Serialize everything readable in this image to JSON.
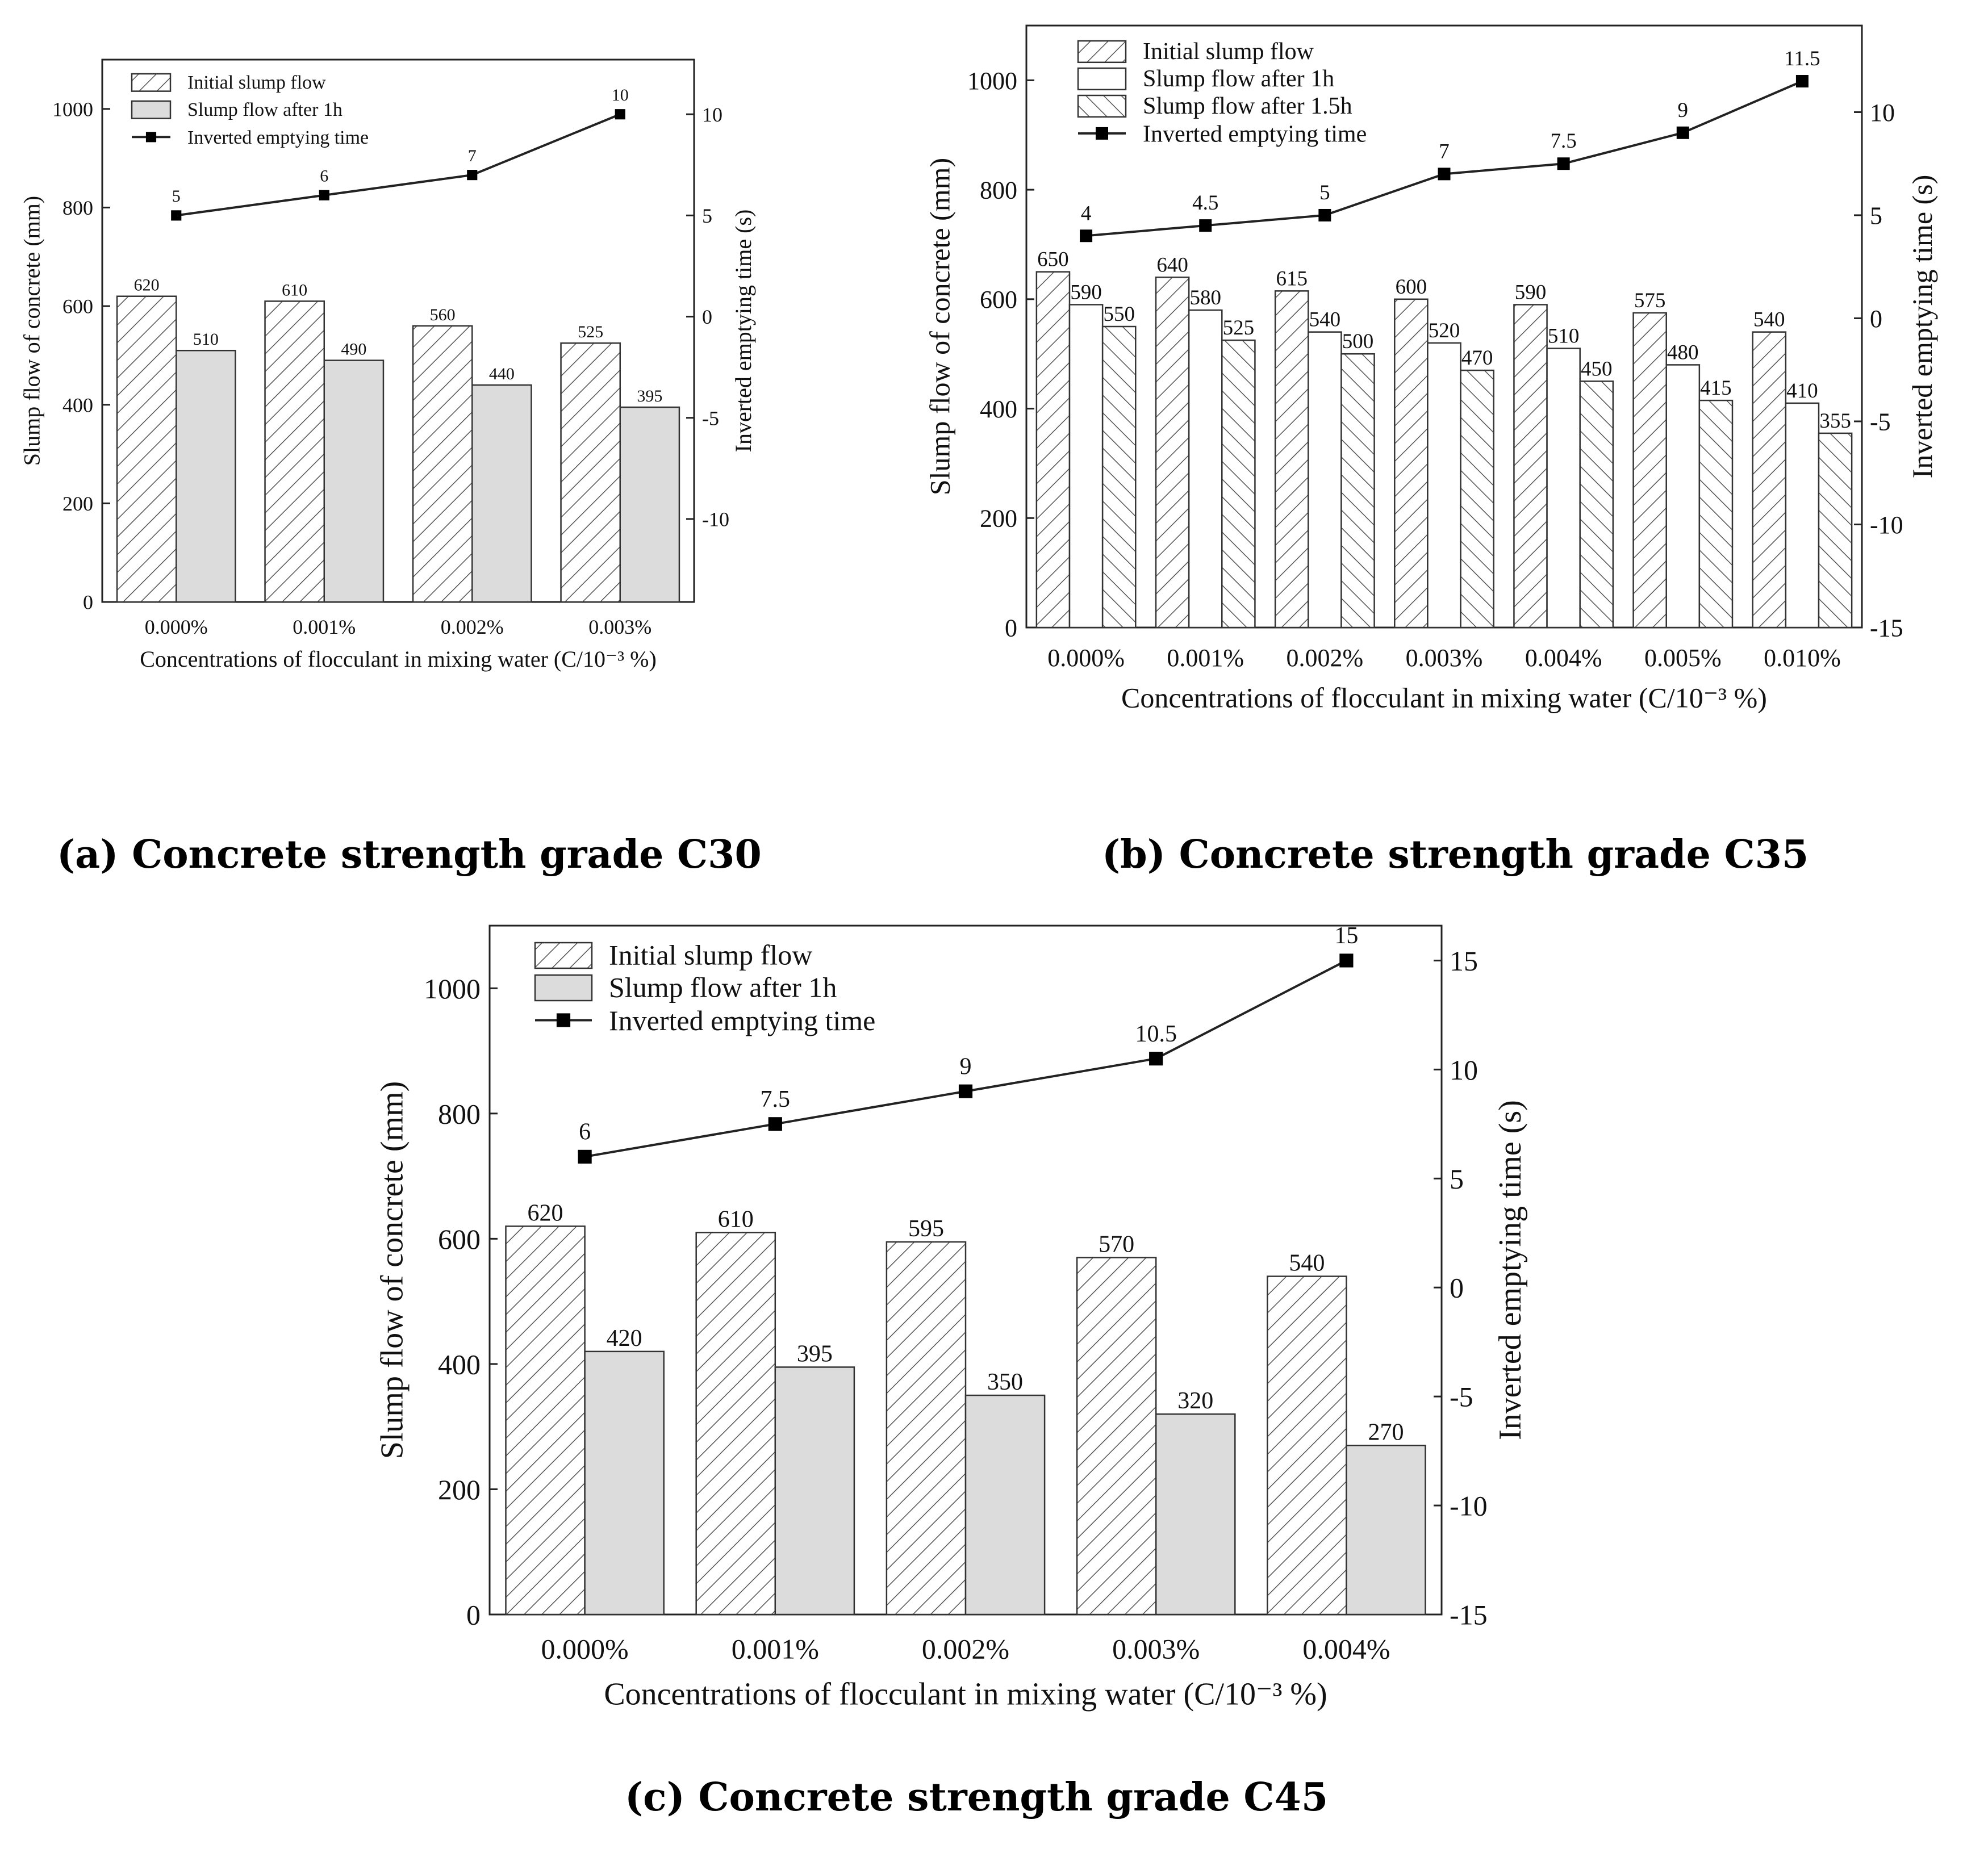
{
  "colors": {
    "axis": "#222222",
    "bar_stroke": "#333333",
    "hatch": "#555555",
    "gray_fill": "#dcdcdc",
    "white_fill": "#ffffff",
    "line": "#222222"
  },
  "chart_data": [
    {
      "id": "a",
      "type": "bar",
      "caption": "(a) Concrete strength grade C30",
      "categories": [
        "0.000%",
        "0.001%",
        "0.002%",
        "0.003%"
      ],
      "xlabel": "Concentrations of flocculant in mixing water (C/10⁻³ %)",
      "ylabel": "Slump flow of concrete (mm)",
      "y2label": "Inverted emptying time (s)",
      "ylim": [
        0,
        1100
      ],
      "yticks": [
        0,
        200,
        400,
        600,
        800,
        1000
      ],
      "y2lim": [
        -14.1,
        12.7
      ],
      "y2ticks": [
        -10,
        -5,
        0,
        5,
        10
      ],
      "legend_position": "top-left",
      "series": [
        {
          "name": "Initial slump flow",
          "style": "hatch",
          "values": [
            620,
            610,
            560,
            525
          ],
          "labels": [
            "620",
            "610",
            "560",
            "525"
          ]
        },
        {
          "name": "Slump flow after 1h",
          "style": "gray",
          "values": [
            510,
            490,
            440,
            395
          ],
          "labels": [
            "510",
            "490",
            "440",
            "395"
          ]
        }
      ],
      "line": {
        "name": "Inverted emptying time",
        "axis": "right",
        "values": [
          5,
          6,
          7,
          10
        ],
        "labels": [
          "5",
          "6",
          "7",
          "10"
        ]
      }
    },
    {
      "id": "b",
      "type": "bar",
      "caption": "(b) Concrete strength grade C35",
      "categories": [
        "0.000%",
        "0.001%",
        "0.002%",
        "0.003%",
        "0.004%",
        "0.005%",
        "0.010%"
      ],
      "xlabel": "Concentrations of flocculant in mixing water (C/10⁻³ %)",
      "ylabel": "Slump flow of concrete (mm)",
      "y2label": "Inverted emptying time (s)",
      "ylim": [
        0,
        1100
      ],
      "yticks": [
        0,
        200,
        400,
        600,
        800,
        1000
      ],
      "y2lim": [
        -15,
        14.2
      ],
      "y2ticks": [
        -15,
        -10,
        -5,
        0,
        5,
        10
      ],
      "legend_position": "top-left",
      "series": [
        {
          "name": "Initial slump flow",
          "style": "hatch",
          "values": [
            650,
            640,
            615,
            600,
            590,
            575,
            540
          ],
          "labels": [
            "650",
            "640",
            "615",
            "600",
            "590",
            "575",
            "540"
          ]
        },
        {
          "name": "Slump flow after 1h",
          "style": "white",
          "values": [
            590,
            580,
            540,
            520,
            510,
            480,
            410
          ],
          "labels": [
            "590",
            "580",
            "540",
            "520",
            "510",
            "480",
            "410"
          ]
        },
        {
          "name": "Slump flow after 1.5h",
          "style": "backhatch",
          "values": [
            550,
            525,
            500,
            470,
            450,
            415,
            355
          ],
          "labels": [
            "550",
            "525",
            "500",
            "470",
            "450",
            "415",
            "355"
          ]
        }
      ],
      "line": {
        "name": "Inverted emptying time",
        "axis": "right",
        "values": [
          4,
          4.5,
          5,
          7,
          7.5,
          9,
          11.5
        ],
        "labels": [
          "4",
          "4.5",
          "5",
          "7",
          "7.5",
          "9",
          "11.5"
        ]
      }
    },
    {
      "id": "c",
      "type": "bar",
      "caption": "(c) Concrete strength grade C45",
      "categories": [
        "0.000%",
        "0.001%",
        "0.002%",
        "0.003%",
        "0.004%"
      ],
      "xlabel": "Concentrations of flocculant in mixing water (C/10⁻³ %)",
      "ylabel": "Slump flow of concrete (mm)",
      "y2label": "Inverted emptying time (s)",
      "ylim": [
        0,
        1100
      ],
      "yticks": [
        0,
        200,
        400,
        600,
        800,
        1000
      ],
      "y2lim": [
        -15,
        16.6
      ],
      "y2ticks": [
        -15,
        -10,
        -5,
        0,
        5,
        10,
        15
      ],
      "legend_position": "top-left",
      "series": [
        {
          "name": "Initial slump flow",
          "style": "hatch",
          "values": [
            620,
            610,
            595,
            570,
            540
          ],
          "labels": [
            "620",
            "610",
            "595",
            "570",
            "540"
          ]
        },
        {
          "name": "Slump flow after 1h",
          "style": "gray",
          "values": [
            420,
            395,
            350,
            320,
            270
          ],
          "labels": [
            "420",
            "395",
            "350",
            "320",
            "270"
          ]
        }
      ],
      "line": {
        "name": "Inverted emptying time",
        "axis": "right",
        "values": [
          6,
          7.5,
          9,
          10.5,
          15
        ],
        "labels": [
          "6",
          "7.5",
          "9",
          "10.5",
          "15"
        ]
      }
    }
  ]
}
